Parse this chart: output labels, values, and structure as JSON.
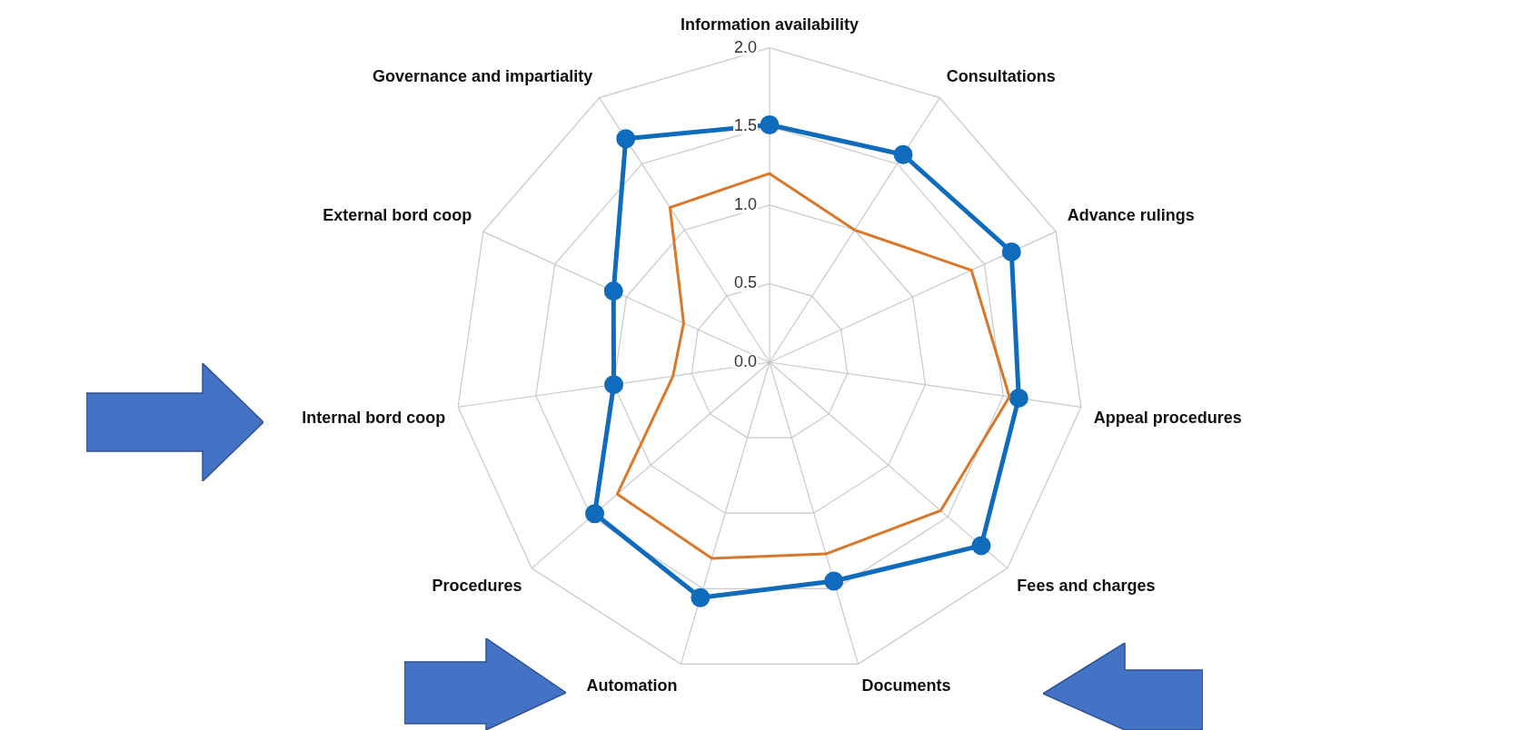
{
  "chart_data": {
    "type": "radar",
    "categories": [
      "Information availability",
      "Consultations",
      "Advance rulings",
      "Appeal procedures",
      "Fees and charges",
      "Documents",
      "Automation",
      "Procedures",
      "Internal bord coop",
      "External bord coop",
      "Governance and impartiality"
    ],
    "series": [
      {
        "color": "#d9782b",
        "marker": "none",
        "values": [
          1.2,
          1.0,
          1.41,
          1.54,
          1.44,
          1.27,
          1.3,
          1.28,
          0.62,
          0.6,
          1.17
        ]
      },
      {
        "color": "#0f6cbd",
        "marker": "circle",
        "values": [
          1.51,
          1.57,
          1.69,
          1.6,
          1.78,
          1.45,
          1.56,
          1.47,
          1.0,
          1.09,
          1.69
        ]
      }
    ],
    "ylim": [
      0,
      2
    ],
    "yticks": [
      {
        "value": 0,
        "label": "0.0"
      },
      {
        "value": 0.5,
        "label": "0.5"
      },
      {
        "value": 1,
        "label": "1.0"
      },
      {
        "value": 1.5,
        "label": "1.5"
      },
      {
        "value": 2,
        "label": "2.0"
      }
    ],
    "grid": true,
    "legend": false
  }
}
